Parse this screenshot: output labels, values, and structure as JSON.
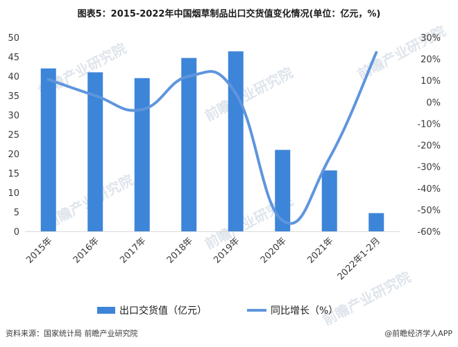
{
  "title": "图表5：2015-2022年中国烟草制品出口交货值变化情况(单位：亿元，%)",
  "source_left": "资料来源：国家统计局 前瞻产业研究院",
  "source_right": "@前瞻经济学人APP",
  "watermark": "前瞻产业研究院",
  "colors": {
    "bar": "#3d85d8",
    "line": "#5f95dd",
    "axis": "#d9d9d9"
  },
  "chart_data": {
    "type": "bar",
    "categories": [
      "2015年",
      "2016年",
      "2017年",
      "2018年",
      "2019年",
      "2020年",
      "2021年",
      "2022年1-2月"
    ],
    "series": [
      {
        "name": "出口交货值（亿元）",
        "type": "bar",
        "axis": "left",
        "values": [
          42,
          41,
          39.5,
          44.7,
          46.4,
          21,
          15.7,
          4.7
        ]
      },
      {
        "name": "同比增长（%）",
        "type": "line",
        "smooth": true,
        "axis": "right",
        "values": [
          10.5,
          3,
          -3.5,
          12,
          4,
          -55,
          -26,
          23
        ]
      }
    ],
    "y_left": {
      "min": 0,
      "max": 50,
      "ticks": [
        "0",
        "5",
        "10",
        "15",
        "20",
        "25",
        "30",
        "35",
        "40",
        "45",
        "50"
      ]
    },
    "y_right": {
      "min": -60,
      "max": 30,
      "ticks": [
        "-60%",
        "-50%",
        "-40%",
        "-30%",
        "-20%",
        "-10%",
        "0%",
        "10%",
        "20%",
        "30%"
      ]
    },
    "legend": {
      "position": "bottom",
      "items": [
        "出口交货值（亿元）",
        "同比增长（%）"
      ]
    },
    "grid": false
  }
}
